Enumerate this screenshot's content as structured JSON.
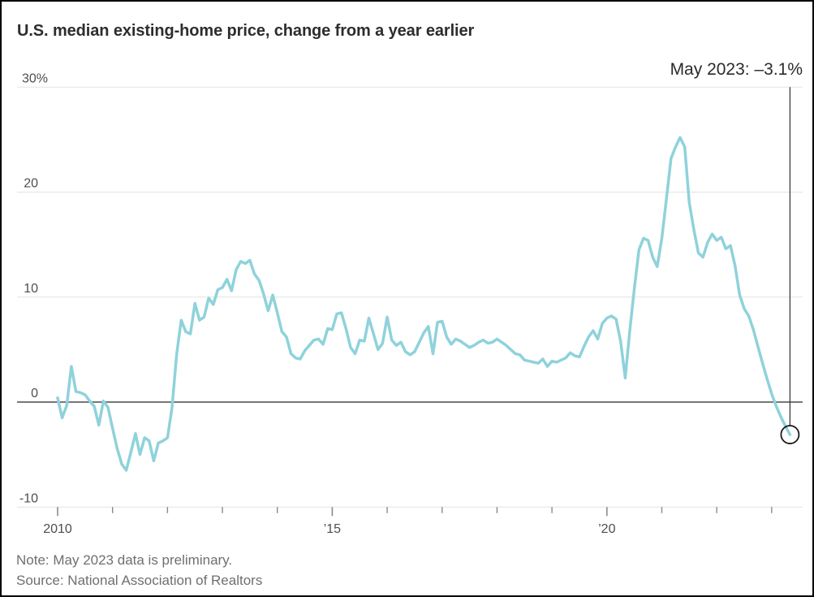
{
  "title": "U.S. median existing-home price, change from a year earlier",
  "annotation": {
    "text": "May 2023: –3.1%"
  },
  "footer": {
    "note": "Note: May 2023 data is preliminary.",
    "source": "Source: National Association of Realtors"
  },
  "colors": {
    "line": "#8FD2DB",
    "grid": "#E3E3E3",
    "zero_line": "#4A4A4A",
    "tick": "#8A8A8A",
    "axis_text": "#4E4E4E",
    "title_text": "#2D2D2D",
    "footer_text": "#6F6F6F",
    "annotation_line": "#3C3C3C",
    "endpoint_circle": "#1A1A1A",
    "frame_border": "#000000"
  },
  "chart_data": {
    "type": "line",
    "series_name": "U.S. median existing-home price, year-over-year % change",
    "frequency": "monthly",
    "x_start": "2010-01",
    "x_end": "2023-05",
    "ylim": [
      -10,
      30
    ],
    "grid": "horizontal-only",
    "legend_position": "none",
    "y_ticks": [
      {
        "value": 30,
        "label": "30%"
      },
      {
        "value": 20,
        "label": "20"
      },
      {
        "value": 10,
        "label": "10"
      },
      {
        "value": 0,
        "label": "0"
      },
      {
        "value": -10,
        "label": "-10"
      }
    ],
    "x_ticks": [
      {
        "year": 2010,
        "label": "2010"
      },
      {
        "year": 2011,
        "label": ""
      },
      {
        "year": 2012,
        "label": ""
      },
      {
        "year": 2013,
        "label": ""
      },
      {
        "year": 2014,
        "label": ""
      },
      {
        "year": 2015,
        "label": "’15"
      },
      {
        "year": 2016,
        "label": ""
      },
      {
        "year": 2017,
        "label": ""
      },
      {
        "year": 2018,
        "label": ""
      },
      {
        "year": 2019,
        "label": ""
      },
      {
        "year": 2020,
        "label": "’20"
      },
      {
        "year": 2021,
        "label": ""
      },
      {
        "year": 2022,
        "label": ""
      },
      {
        "year": 2023,
        "label": ""
      }
    ],
    "values": [
      0.4,
      -1.5,
      -0.3,
      3.4,
      1.0,
      0.9,
      0.7,
      0.1,
      -0.4,
      -2.2,
      0.1,
      -0.5,
      -2.5,
      -4.4,
      -5.9,
      -6.5,
      -4.8,
      -3.0,
      -5.0,
      -3.4,
      -3.7,
      -5.6,
      -3.9,
      -3.7,
      -3.4,
      -0.5,
      4.5,
      7.8,
      6.7,
      6.5,
      9.4,
      7.8,
      8.1,
      9.9,
      9.3,
      10.7,
      10.9,
      11.7,
      10.6,
      12.6,
      13.4,
      13.2,
      13.5,
      12.2,
      11.6,
      10.3,
      8.7,
      10.2,
      8.5,
      6.7,
      6.2,
      4.6,
      4.2,
      4.1,
      4.9,
      5.4,
      5.9,
      6.0,
      5.5,
      7.0,
      6.9,
      8.4,
      8.5,
      7.0,
      5.2,
      4.6,
      5.9,
      5.8,
      8.0,
      6.5,
      5.0,
      5.6,
      8.1,
      5.9,
      5.4,
      5.7,
      4.8,
      4.5,
      4.8,
      5.7,
      6.6,
      7.2,
      4.6,
      7.6,
      7.7,
      6.2,
      5.5,
      6.0,
      5.8,
      5.5,
      5.2,
      5.4,
      5.7,
      5.9,
      5.6,
      5.7,
      6.0,
      5.7,
      5.4,
      5.0,
      4.6,
      4.5,
      4.0,
      3.9,
      3.8,
      3.7,
      4.1,
      3.4,
      3.9,
      3.8,
      4.0,
      4.2,
      4.7,
      4.4,
      4.3,
      5.3,
      6.2,
      6.8,
      6.0,
      7.5,
      8.0,
      8.2,
      7.9,
      5.8,
      2.3,
      6.8,
      10.8,
      14.5,
      15.6,
      15.4,
      13.8,
      12.9,
      15.6,
      19.3,
      23.2,
      24.3,
      25.2,
      24.3,
      19.0,
      16.4,
      14.2,
      13.8,
      15.2,
      16.0,
      15.4,
      15.7,
      14.6,
      14.9,
      13.0,
      10.2,
      8.9,
      8.2,
      6.9,
      5.3,
      3.7,
      2.2,
      0.8,
      -0.4,
      -1.4,
      -2.3,
      -3.1
    ],
    "highlight": {
      "label": "May 2023",
      "value": -3.1
    }
  }
}
